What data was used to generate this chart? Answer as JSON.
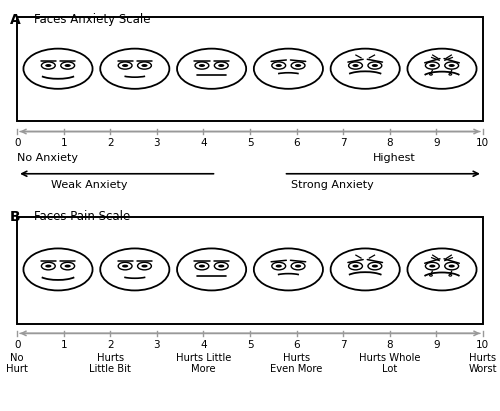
{
  "panel_A_title": "Faces Anxiety Scale",
  "panel_B_title": "Faces Pain Scale",
  "panel_A_label": "A",
  "panel_B_label": "B",
  "anxiety_labels": {
    "no_anxiety": "No Anxiety",
    "highest": "Highest",
    "weak": "Weak Anxiety",
    "strong": "Strong Anxiety"
  },
  "pain_labels": {
    "0": "No\nHurt",
    "2": "Hurts\nLittle Bit",
    "4": "Hurts Little\nMore",
    "6": "Hurts\nEven More",
    "8": "Hurts Whole\nLot",
    "10": "Hurts\nWorst"
  },
  "scale_color": "#999999",
  "text_color": "black",
  "background_color": "white"
}
